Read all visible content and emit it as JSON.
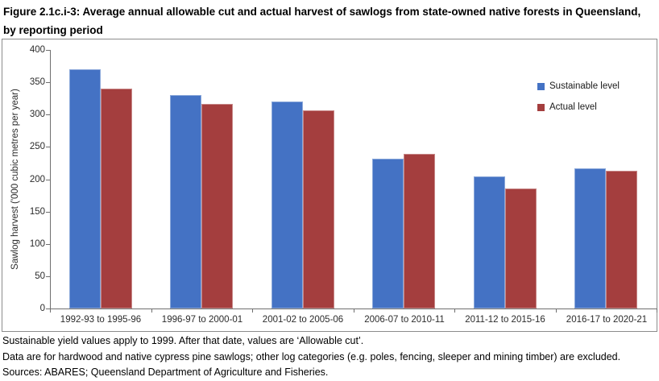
{
  "figure": {
    "title": "Figure 2.1c.i-3: Average annual allowable cut and actual harvest of sawlogs from state-owned native forests in Queensland, by reporting period"
  },
  "chart_data": {
    "type": "bar",
    "categories": [
      "1992-93 to 1995-96",
      "1996-97 to 2000-01",
      "2001-02 to 2005-06",
      "2006-07 to 2010-11",
      "2011-12 to 2015-16",
      "2016-17 to 2020-21"
    ],
    "series": [
      {
        "name": "Sustainable level",
        "color": "#4472C4",
        "values": [
          370,
          330,
          320,
          232,
          204,
          217
        ]
      },
      {
        "name": "Actual level",
        "color": "#A43E3E",
        "values": [
          340,
          316,
          306,
          239,
          186,
          213
        ]
      }
    ],
    "xlabel": "",
    "ylabel": "Sawlog harvest ('000 cubic metres per year)",
    "ylim": [
      0,
      400
    ],
    "ytick_interval": 50,
    "grid": false,
    "legend_position": "inside-top-right"
  },
  "footnotes": [
    "Sustainable yield values apply to 1999. After that date, values are ‘Allowable cut’.",
    "Data are for hardwood and native cypress pine sawlogs; other log categories (e.g. poles, fencing, sleeper and mining timber) are excluded.",
    "Sources: ABARES; Queensland Department of Agriculture and Fisheries."
  ],
  "colors": {
    "axis": "#6F6F6F",
    "chart_border": "#8C8C8C"
  }
}
